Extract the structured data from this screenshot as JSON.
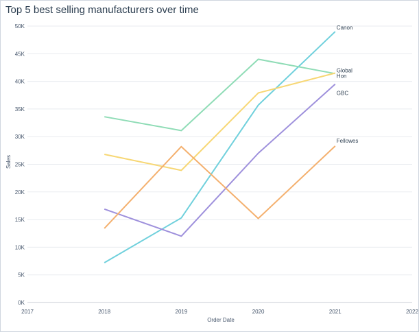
{
  "chart_data": {
    "type": "line",
    "title": "Top 5 best selling manufacturers over time",
    "xlabel": "Order Date",
    "ylabel": "Sales",
    "x_ticks": [
      "2017",
      "2018",
      "2019",
      "2020",
      "2021",
      "2022"
    ],
    "y_ticks": [
      "0K",
      "5K",
      "10K",
      "15K",
      "20K",
      "25K",
      "30K",
      "35K",
      "40K",
      "45K",
      "50K"
    ],
    "xlim": [
      2017,
      2022
    ],
    "ylim": [
      0,
      50000
    ],
    "grid": true,
    "x": [
      2018,
      2019,
      2020,
      2021
    ],
    "series": [
      {
        "name": "Canon",
        "color": "#6fd0dc",
        "values": [
          7200,
          15300,
          35700,
          49000
        ]
      },
      {
        "name": "Global",
        "color": "#8fdcb6",
        "values": [
          33600,
          31100,
          44000,
          41400
        ]
      },
      {
        "name": "Hon",
        "color": "#f7d774",
        "values": [
          26800,
          23900,
          37900,
          41500
        ]
      },
      {
        "name": "GBC",
        "color": "#9e90dc",
        "values": [
          16900,
          12000,
          27000,
          39500
        ]
      },
      {
        "name": "Fellowes",
        "color": "#f4b06e",
        "values": [
          13400,
          28200,
          15200,
          28300
        ]
      }
    ]
  }
}
